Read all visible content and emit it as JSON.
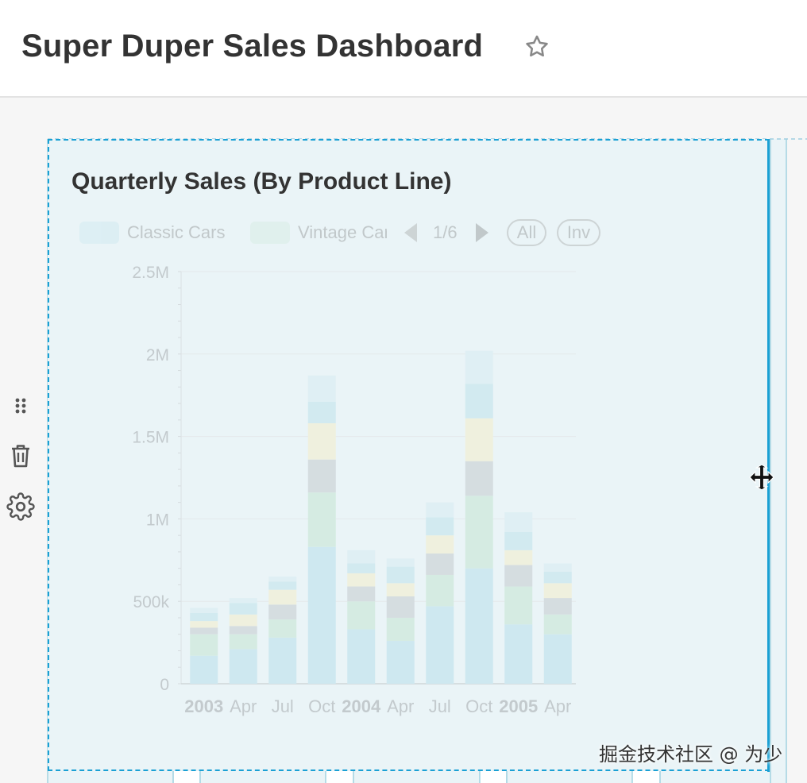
{
  "dashboard": {
    "title": "Super Duper Sales Dashboard",
    "favorite_icon": "star-outline-icon"
  },
  "side_controls": [
    {
      "name": "drag-handle-icon"
    },
    {
      "name": "trash-icon"
    },
    {
      "name": "gear-icon"
    }
  ],
  "chart_card": {
    "title": "Quarterly Sales (By Product Line)",
    "legend": {
      "items": [
        {
          "label": "Classic Cars",
          "color": "#c5e4ee"
        },
        {
          "label": "Vintage Cars",
          "color": "#cfe9dc"
        }
      ],
      "page": "1/6",
      "all_label": "All",
      "inv_label": "Inv"
    }
  },
  "chart_data": {
    "type": "bar",
    "stacked": true,
    "title": "Quarterly Sales (By Product Line)",
    "categories": [
      "2003",
      "Apr",
      "Jul",
      "Oct",
      "2004",
      "Apr",
      "Jul",
      "Oct",
      "2005",
      "Apr"
    ],
    "category_bold": [
      true,
      false,
      false,
      false,
      true,
      false,
      false,
      false,
      true,
      false
    ],
    "yticks": [
      "0",
      "500k",
      "1M",
      "1.5M",
      "2M",
      "2.5M"
    ],
    "ylim": [
      0,
      2500000
    ],
    "series": [
      {
        "name": "Classic Cars",
        "color": "#c5e4ee",
        "values": [
          170000,
          210000,
          280000,
          830000,
          330000,
          260000,
          470000,
          700000,
          360000,
          300000
        ]
      },
      {
        "name": "Vintage Cars",
        "color": "#cfe9dc",
        "values": [
          130000,
          90000,
          110000,
          330000,
          170000,
          140000,
          190000,
          440000,
          230000,
          120000
        ]
      },
      {
        "color": "#cfd6d9",
        "values": [
          40000,
          50000,
          90000,
          200000,
          90000,
          130000,
          130000,
          210000,
          130000,
          100000
        ]
      },
      {
        "color": "#f1efd6",
        "values": [
          40000,
          70000,
          90000,
          220000,
          80000,
          80000,
          110000,
          260000,
          90000,
          90000
        ]
      },
      {
        "color": "#cbe7ee",
        "values": [
          50000,
          70000,
          50000,
          130000,
          60000,
          100000,
          110000,
          210000,
          110000,
          70000
        ]
      },
      {
        "color": "#dceef3",
        "values": [
          30000,
          30000,
          30000,
          160000,
          80000,
          50000,
          90000,
          200000,
          120000,
          50000
        ]
      }
    ],
    "grid": true,
    "legend_position": "top"
  },
  "watermark": "掘金技术社区 @ 为少",
  "resize_cursor_icon": "horizontal-resize-cursor-icon"
}
